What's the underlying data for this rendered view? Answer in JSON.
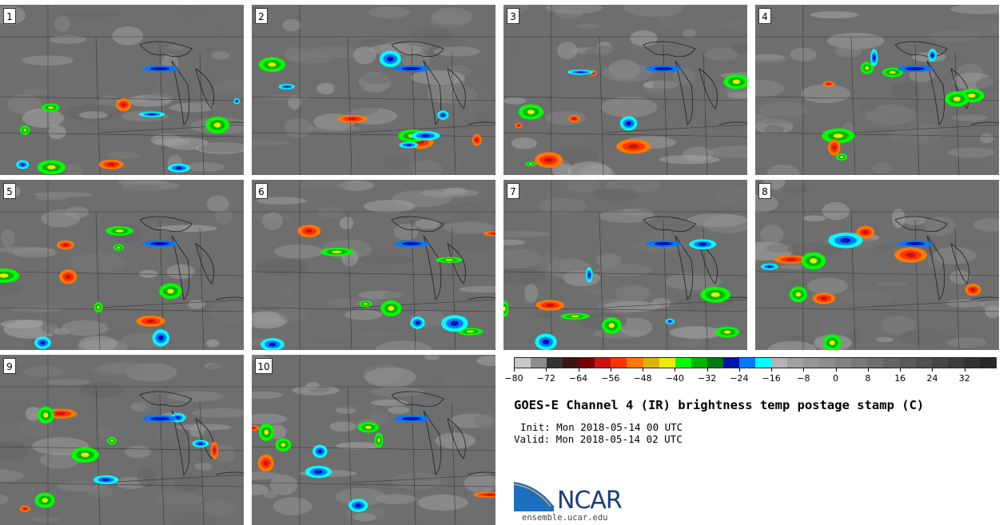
{
  "panels": [
    {
      "label": "1"
    },
    {
      "label": "2"
    },
    {
      "label": "3"
    },
    {
      "label": "4"
    },
    {
      "label": "5"
    },
    {
      "label": "6"
    },
    {
      "label": "7"
    },
    {
      "label": "8"
    },
    {
      "label": "9"
    },
    {
      "label": "10"
    }
  ],
  "colorbar": {
    "colors": [
      "#c8c8c8",
      "#8c8c8c",
      "#323232",
      "#3c1414",
      "#780000",
      "#c81414",
      "#ff3200",
      "#ff7800",
      "#dcb400",
      "#ebeb00",
      "#00ff00",
      "#00b400",
      "#007814",
      "#0014aa",
      "#0078ff",
      "#00ffff",
      "#b4b4b4",
      "#a0a0a0",
      "#969696",
      "#8c8c8c",
      "#828282",
      "#787878",
      "#6e6e6e",
      "#646464",
      "#5a5a5a",
      "#505050",
      "#464646",
      "#3c3c3c",
      "#323232",
      "#282828"
    ],
    "tick_labels": [
      "−80",
      "−72",
      "−64",
      "−56",
      "−48",
      "−40",
      "−32",
      "−24",
      "−16",
      "−8",
      "0",
      "8",
      "16",
      "24",
      "32"
    ],
    "range": [
      -80,
      40
    ]
  },
  "title": "GOES-E Channel 4 (IR) brightness temp postage stamp (C)",
  "init": "Init: Mon 2018-05-14 00 UTC",
  "valid": "Valid: Mon 2018-05-14 02 UTC",
  "logo": {
    "text": "NCAR",
    "site": "ensemble.ucar.edu"
  }
}
